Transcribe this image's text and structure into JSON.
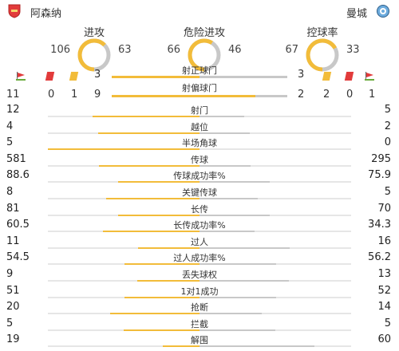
{
  "header": {
    "home_team": "阿森纳",
    "away_team": "曼城",
    "home_badge_icon": "arsenal-badge-icon",
    "away_badge_icon": "man-city-badge-icon"
  },
  "rings": [
    {
      "title": "进攻",
      "home": "106",
      "away": "63",
      "home_share": 0.627
    },
    {
      "title": "危险进攻",
      "home": "66",
      "away": "46",
      "home_share": 0.589
    },
    {
      "title": "控球率",
      "home": "67",
      "away": "33",
      "home_share": 0.67
    }
  ],
  "discipline": {
    "home": {
      "corner_icon": "corner-flag-icon",
      "red_icon": "red-card-icon",
      "yellow_icon": "yellow-card-icon",
      "on_target": "3"
    },
    "away": {
      "on_target": "3"
    },
    "on_target_label": "射正球门",
    "off_target_label": "射偏球门",
    "home_counts": [
      "11",
      "0",
      "1",
      "9"
    ],
    "away_counts": [
      "2",
      "2",
      "0",
      "1"
    ]
  },
  "stats": [
    {
      "label": "射门",
      "home": "12",
      "away": "5"
    },
    {
      "label": "越位",
      "home": "4",
      "away": "2"
    },
    {
      "label": "半场角球",
      "home": "5",
      "away": "0"
    },
    {
      "label": "传球",
      "home": "581",
      "away": "295"
    },
    {
      "label": "传球成功率%",
      "home": "88.6",
      "away": "75.9"
    },
    {
      "label": "关键传球",
      "home": "8",
      "away": "5"
    },
    {
      "label": "长传",
      "home": "81",
      "away": "70"
    },
    {
      "label": "长传成功率%",
      "home": "60.5",
      "away": "34.3"
    },
    {
      "label": "过人",
      "home": "11",
      "away": "16"
    },
    {
      "label": "过人成功率%",
      "home": "54.5",
      "away": "56.2"
    },
    {
      "label": "丢失球权",
      "home": "9",
      "away": "13"
    },
    {
      "label": "1对1成功",
      "home": "51",
      "away": "52"
    },
    {
      "label": "抢断",
      "home": "20",
      "away": "14"
    },
    {
      "label": "拦截",
      "home": "5",
      "away": "5"
    },
    {
      "label": "解围",
      "home": "19",
      "away": "60"
    }
  ],
  "colors": {
    "home": "#f2bc3a",
    "away": "#c8c8c8",
    "red_card": "#e23b3b",
    "yellow_card": "#f2bc3a"
  }
}
